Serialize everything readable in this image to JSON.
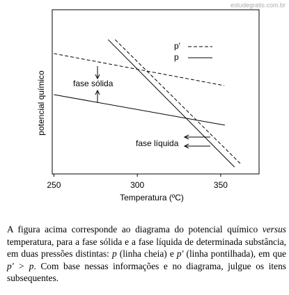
{
  "watermark": "estudegratis.com.br",
  "chart_data": {
    "type": "line",
    "xlabel": "Temperatura (ºC)",
    "ylabel": "potencial químico",
    "xlim": [
      249,
      373
    ],
    "ylim": [
      0,
      100
    ],
    "xticks": [
      250,
      300,
      350
    ],
    "series": [
      {
        "style": "dashed",
        "color": "#000000",
        "x": [
          250,
          352.1
        ],
        "values": [
          73.3,
          53.8
        ]
      },
      {
        "style": "solid",
        "color": "#000000",
        "x": [
          250,
          352.5
        ],
        "values": [
          48.3,
          29.7
        ]
      },
      {
        "style": "dashed",
        "color": "#000000",
        "x": [
          286.7,
          361.7
        ],
        "values": [
          81.8,
          6.4
        ]
      },
      {
        "style": "solid",
        "color": "#000000",
        "x": [
          282.5,
          358.3
        ],
        "values": [
          81.8,
          4.2
        ]
      }
    ],
    "legend": [
      {
        "name": "p'",
        "style": "dashed"
      },
      {
        "name": "p",
        "style": "solid"
      }
    ],
    "annotations": [
      "fase sólida",
      "fase líquida"
    ]
  },
  "caption": [
    {
      "text": "A figura acima corresponde ao diagrama do potencial químico ",
      "italic": false
    },
    {
      "text": "versus",
      "italic": true
    },
    {
      "text": " temperatura, para a fase sólida e a fase líquida de determinada substância, em duas pressões distintas: ",
      "italic": false
    },
    {
      "text": "p",
      "italic": true
    },
    {
      "text": " (linha cheia) e ",
      "italic": false
    },
    {
      "text": "p'",
      "italic": true
    },
    {
      "text": " (linha pontilhada), em que ",
      "italic": false
    },
    {
      "text": "p' > p",
      "italic": true
    },
    {
      "text": ". Com base nessas informações e no diagrama, julgue os itens subsequentes.",
      "italic": false
    }
  ]
}
